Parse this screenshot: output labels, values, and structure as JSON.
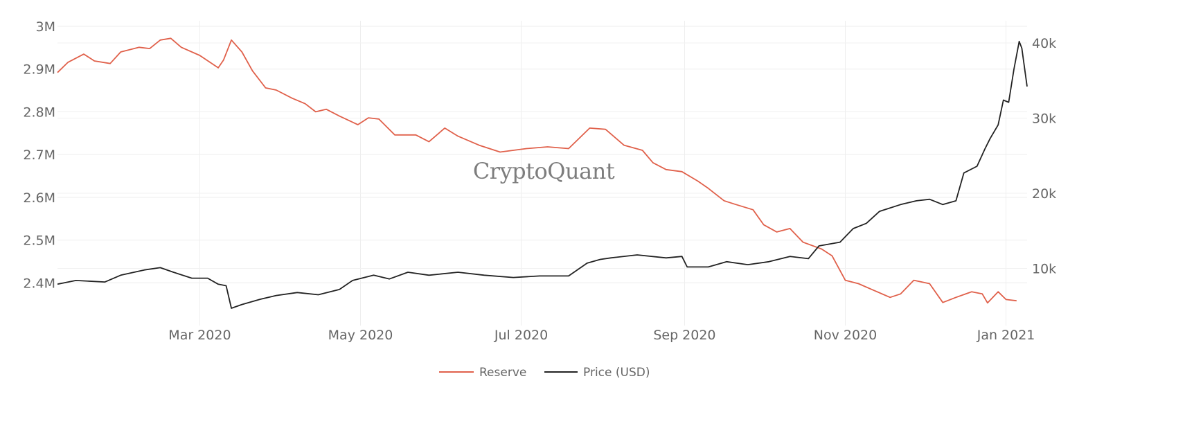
{
  "chart_data": {
    "type": "line",
    "title": "",
    "watermark": "CryptoQuant",
    "x_unit": "day of year since 2020-01-01 (day 1 = 2020-01-01)",
    "xlim": [
      6,
      374
    ],
    "x_ticks": [
      {
        "day": 60,
        "label": "Mar 2020"
      },
      {
        "day": 121,
        "label": "May 2020"
      },
      {
        "day": 182,
        "label": "Jul 2020"
      },
      {
        "day": 244,
        "label": "Sep 2020"
      },
      {
        "day": 305,
        "label": "Nov 2020"
      },
      {
        "day": 366,
        "label": "Jan 2021"
      }
    ],
    "y_left": {
      "unit": "M",
      "ylim": [
        2.3,
        3.013
      ],
      "ticks": [
        {
          "value": 2.4,
          "label": "2.4M"
        },
        {
          "value": 2.5,
          "label": "2.5M"
        },
        {
          "value": 2.6,
          "label": "2.6M"
        },
        {
          "value": 2.7,
          "label": "2.7M"
        },
        {
          "value": 2.8,
          "label": "2.8M"
        },
        {
          "value": 2.9,
          "label": "2.9M"
        },
        {
          "value": 3.0,
          "label": "3M"
        }
      ]
    },
    "y_right": {
      "unit": "k USD",
      "ylim": [
        2.4,
        42.95
      ],
      "ticks": [
        {
          "value": 10,
          "label": "10k"
        },
        {
          "value": 20,
          "label": "20k"
        },
        {
          "value": 30,
          "label": "30k"
        },
        {
          "value": 40,
          "label": "40k"
        }
      ]
    },
    "grid": true,
    "legend_position": "bottom-center",
    "series": [
      {
        "name": "Reserve",
        "axis": "left",
        "color": "#e0604a",
        "points": [
          [
            6,
            2.892
          ],
          [
            10,
            2.916
          ],
          [
            16,
            2.935
          ],
          [
            20,
            2.919
          ],
          [
            26,
            2.913
          ],
          [
            30,
            2.94
          ],
          [
            37,
            2.951
          ],
          [
            41,
            2.948
          ],
          [
            45,
            2.968
          ],
          [
            49,
            2.972
          ],
          [
            53,
            2.951
          ],
          [
            60,
            2.932
          ],
          [
            67,
            2.903
          ],
          [
            69,
            2.921
          ],
          [
            72,
            2.968
          ],
          [
            76,
            2.94
          ],
          [
            80,
            2.896
          ],
          [
            85,
            2.856
          ],
          [
            89,
            2.851
          ],
          [
            95,
            2.832
          ],
          [
            100,
            2.819
          ],
          [
            104,
            2.8
          ],
          [
            108,
            2.806
          ],
          [
            113,
            2.79
          ],
          [
            120,
            2.77
          ],
          [
            124,
            2.786
          ],
          [
            128,
            2.783
          ],
          [
            134,
            2.746
          ],
          [
            142,
            2.746
          ],
          [
            147,
            2.73
          ],
          [
            153,
            2.762
          ],
          [
            158,
            2.743
          ],
          [
            166,
            2.722
          ],
          [
            174,
            2.706
          ],
          [
            184,
            2.714
          ],
          [
            192,
            2.718
          ],
          [
            200,
            2.714
          ],
          [
            208,
            2.762
          ],
          [
            214,
            2.759
          ],
          [
            221,
            2.722
          ],
          [
            228,
            2.71
          ],
          [
            232,
            2.681
          ],
          [
            237,
            2.665
          ],
          [
            243,
            2.66
          ],
          [
            249,
            2.638
          ],
          [
            253,
            2.621
          ],
          [
            259,
            2.592
          ],
          [
            263,
            2.584
          ],
          [
            270,
            2.571
          ],
          [
            274,
            2.536
          ],
          [
            279,
            2.519
          ],
          [
            284,
            2.527
          ],
          [
            289,
            2.495
          ],
          [
            296,
            2.479
          ],
          [
            300,
            2.463
          ],
          [
            305,
            2.406
          ],
          [
            310,
            2.398
          ],
          [
            316,
            2.382
          ],
          [
            322,
            2.366
          ],
          [
            326,
            2.374
          ],
          [
            331,
            2.406
          ],
          [
            337,
            2.398
          ],
          [
            342,
            2.354
          ],
          [
            347,
            2.366
          ],
          [
            353,
            2.379
          ],
          [
            357,
            2.374
          ],
          [
            359,
            2.353
          ],
          [
            363,
            2.379
          ],
          [
            366,
            2.361
          ],
          [
            370,
            2.358
          ]
        ]
      },
      {
        "name": "Price (USD)",
        "axis": "right",
        "color": "#222222",
        "points": [
          [
            6,
            7.9
          ],
          [
            13,
            8.4
          ],
          [
            24,
            8.2
          ],
          [
            30,
            9.1
          ],
          [
            39,
            9.8
          ],
          [
            45,
            10.1
          ],
          [
            50,
            9.5
          ],
          [
            57,
            8.7
          ],
          [
            63,
            8.7
          ],
          [
            67,
            7.9
          ],
          [
            70,
            7.7
          ],
          [
            72,
            4.7
          ],
          [
            76,
            5.2
          ],
          [
            83,
            5.9
          ],
          [
            89,
            6.4
          ],
          [
            97,
            6.8
          ],
          [
            105,
            6.5
          ],
          [
            113,
            7.2
          ],
          [
            118,
            8.4
          ],
          [
            126,
            9.1
          ],
          [
            132,
            8.6
          ],
          [
            139,
            9.5
          ],
          [
            147,
            9.1
          ],
          [
            158,
            9.5
          ],
          [
            168,
            9.1
          ],
          [
            179,
            8.8
          ],
          [
            189,
            9.0
          ],
          [
            200,
            9.0
          ],
          [
            207,
            10.7
          ],
          [
            212,
            11.2
          ],
          [
            216,
            11.4
          ],
          [
            226,
            11.8
          ],
          [
            237,
            11.4
          ],
          [
            243,
            11.6
          ],
          [
            245,
            10.2
          ],
          [
            253,
            10.2
          ],
          [
            260,
            10.9
          ],
          [
            268,
            10.5
          ],
          [
            276,
            10.9
          ],
          [
            284,
            11.6
          ],
          [
            291,
            11.3
          ],
          [
            295,
            13.0
          ],
          [
            303,
            13.5
          ],
          [
            308,
            15.3
          ],
          [
            313,
            16.0
          ],
          [
            318,
            17.6
          ],
          [
            326,
            18.5
          ],
          [
            332,
            19.0
          ],
          [
            337,
            19.2
          ],
          [
            342,
            18.5
          ],
          [
            347,
            19.0
          ],
          [
            350,
            22.7
          ],
          [
            355,
            23.6
          ],
          [
            358,
            25.9
          ],
          [
            360,
            27.3
          ],
          [
            363,
            29.1
          ],
          [
            365,
            32.4
          ],
          [
            367,
            32.1
          ],
          [
            369,
            36.5
          ],
          [
            371,
            40.2
          ],
          [
            372,
            39.3
          ],
          [
            374,
            34.2
          ]
        ]
      }
    ]
  }
}
